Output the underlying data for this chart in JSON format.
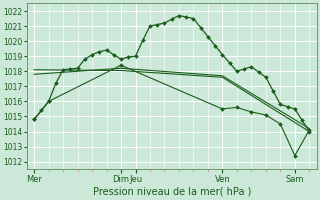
{
  "bg_color": "#cce8d8",
  "grid_color": "#b8d8c8",
  "line_color": "#1a5c1a",
  "marker_color": "#1a5c1a",
  "xlabel": "Pression niveau de la mer( hPa )",
  "ylim": [
    1011.5,
    1022.5
  ],
  "yticks": [
    1012,
    1013,
    1014,
    1015,
    1016,
    1017,
    1018,
    1019,
    1020,
    1021,
    1022
  ],
  "xtick_major_pos": [
    0,
    6,
    7,
    13,
    18
  ],
  "xtick_major_labels": [
    "Mer",
    "Dim",
    "Jeu",
    "Ven",
    "Sam"
  ],
  "xlim": [
    -0.5,
    19.5
  ],
  "series1_x": [
    0,
    0.5,
    1,
    1.5,
    2,
    2.5,
    3,
    3.5,
    4,
    4.5,
    5,
    5.5,
    6,
    6.5,
    7,
    7.5,
    8,
    8.5,
    9,
    9.5,
    10,
    10.5,
    11,
    11.5,
    12,
    12.5,
    13,
    13.5,
    14,
    14.5,
    15,
    15.5,
    16,
    16.5,
    17,
    17.5,
    18,
    18.5,
    19
  ],
  "series1_y": [
    1014.8,
    1015.4,
    1016.0,
    1017.2,
    1018.1,
    1018.15,
    1018.2,
    1018.8,
    1019.1,
    1019.3,
    1019.4,
    1019.1,
    1018.8,
    1018.95,
    1019.0,
    1020.05,
    1021.0,
    1021.1,
    1021.2,
    1021.45,
    1021.7,
    1021.6,
    1021.5,
    1020.9,
    1020.3,
    1019.7,
    1019.1,
    1018.55,
    1018.0,
    1018.15,
    1018.3,
    1017.95,
    1017.6,
    1016.7,
    1015.8,
    1015.65,
    1015.5,
    1014.75,
    1014.0
  ],
  "series2_x": [
    0,
    6,
    13,
    19
  ],
  "series2_y": [
    1018.1,
    1018.05,
    1017.6,
    1014.0
  ],
  "series3_x": [
    0,
    6,
    13,
    19
  ],
  "series3_y": [
    1017.8,
    1018.2,
    1017.7,
    1014.2
  ],
  "series4_x": [
    0,
    1,
    6,
    13,
    14,
    15,
    16,
    17,
    18,
    19
  ],
  "series4_y": [
    1014.8,
    1016.0,
    1018.4,
    1015.5,
    1015.6,
    1015.3,
    1015.1,
    1014.5,
    1012.4,
    1014.1
  ],
  "vline_pos": [
    0,
    6,
    7,
    13,
    18
  ]
}
